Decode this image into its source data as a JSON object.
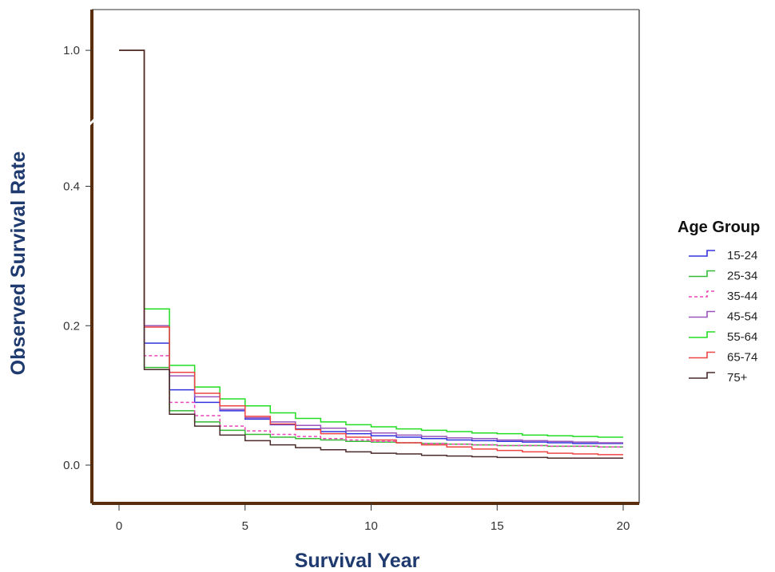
{
  "chart_data": {
    "type": "line",
    "step": true,
    "xlabel": "Survival Year",
    "ylabel": "Observed Survival Rate",
    "xlim": [
      -1,
      21
    ],
    "x_ticks": [
      0,
      5,
      10,
      15,
      20
    ],
    "x_tick_labels": [
      "0",
      "5",
      "10",
      "15",
      "20"
    ],
    "y_ticks": [
      0.0,
      0.2,
      0.4,
      1.0
    ],
    "y_tick_labels": [
      "0.0",
      "0.2",
      "0.4",
      "1.0"
    ],
    "y_scale_note": "broken axis: 0.0-0.4 linear, then gap to 1.0",
    "grid": false,
    "legend": {
      "title": "Age Group",
      "position": "right"
    },
    "x": [
      0,
      1,
      2,
      3,
      4,
      5,
      6,
      7,
      8,
      9,
      10,
      11,
      12,
      13,
      14,
      15,
      16,
      17,
      18,
      19,
      20
    ],
    "series": [
      {
        "name": "15-24",
        "color": "#3333dd",
        "dash": "solid",
        "values": [
          1.0,
          0.175,
          0.108,
          0.09,
          0.078,
          0.066,
          0.058,
          0.052,
          0.048,
          0.045,
          0.042,
          0.04,
          0.038,
          0.036,
          0.035,
          0.034,
          0.033,
          0.032,
          0.031,
          0.031,
          0.031
        ]
      },
      {
        "name": "25-34",
        "color": "#33bb33",
        "dash": "solid",
        "values": [
          1.0,
          0.14,
          0.078,
          0.062,
          0.05,
          0.044,
          0.04,
          0.038,
          0.036,
          0.034,
          0.033,
          0.032,
          0.031,
          0.03,
          0.029,
          0.028,
          0.028,
          0.027,
          0.027,
          0.026,
          0.026
        ]
      },
      {
        "name": "35-44",
        "color": "#ee44bb",
        "dash": "dashed",
        "values": [
          1.0,
          0.157,
          0.09,
          0.071,
          0.056,
          0.049,
          0.044,
          0.041,
          0.038,
          0.036,
          0.034,
          0.032,
          0.031,
          0.03,
          0.029,
          0.028,
          0.028,
          0.027,
          0.027,
          0.026,
          0.026
        ]
      },
      {
        "name": "45-54",
        "color": "#9955bb",
        "dash": "solid",
        "values": [
          1.0,
          0.2,
          0.128,
          0.098,
          0.08,
          0.068,
          0.062,
          0.057,
          0.053,
          0.049,
          0.046,
          0.043,
          0.041,
          0.039,
          0.038,
          0.036,
          0.035,
          0.034,
          0.033,
          0.032,
          0.032
        ]
      },
      {
        "name": "55-64",
        "color": "#22dd22",
        "dash": "solid",
        "values": [
          1.0,
          0.224,
          0.143,
          0.112,
          0.095,
          0.085,
          0.075,
          0.067,
          0.062,
          0.058,
          0.055,
          0.052,
          0.05,
          0.048,
          0.046,
          0.045,
          0.043,
          0.042,
          0.041,
          0.04,
          0.04
        ]
      },
      {
        "name": "65-74",
        "color": "#ee4444",
        "dash": "solid",
        "values": [
          1.0,
          0.198,
          0.133,
          0.103,
          0.085,
          0.07,
          0.059,
          0.051,
          0.045,
          0.04,
          0.036,
          0.032,
          0.029,
          0.026,
          0.023,
          0.021,
          0.019,
          0.017,
          0.016,
          0.015,
          0.015
        ]
      },
      {
        "name": "75+",
        "color": "#4a2a2a",
        "dash": "solid",
        "values": [
          1.0,
          0.137,
          0.073,
          0.056,
          0.043,
          0.035,
          0.029,
          0.025,
          0.022,
          0.019,
          0.017,
          0.016,
          0.014,
          0.013,
          0.012,
          0.011,
          0.011,
          0.01,
          0.01,
          0.01,
          0.01
        ]
      }
    ]
  }
}
